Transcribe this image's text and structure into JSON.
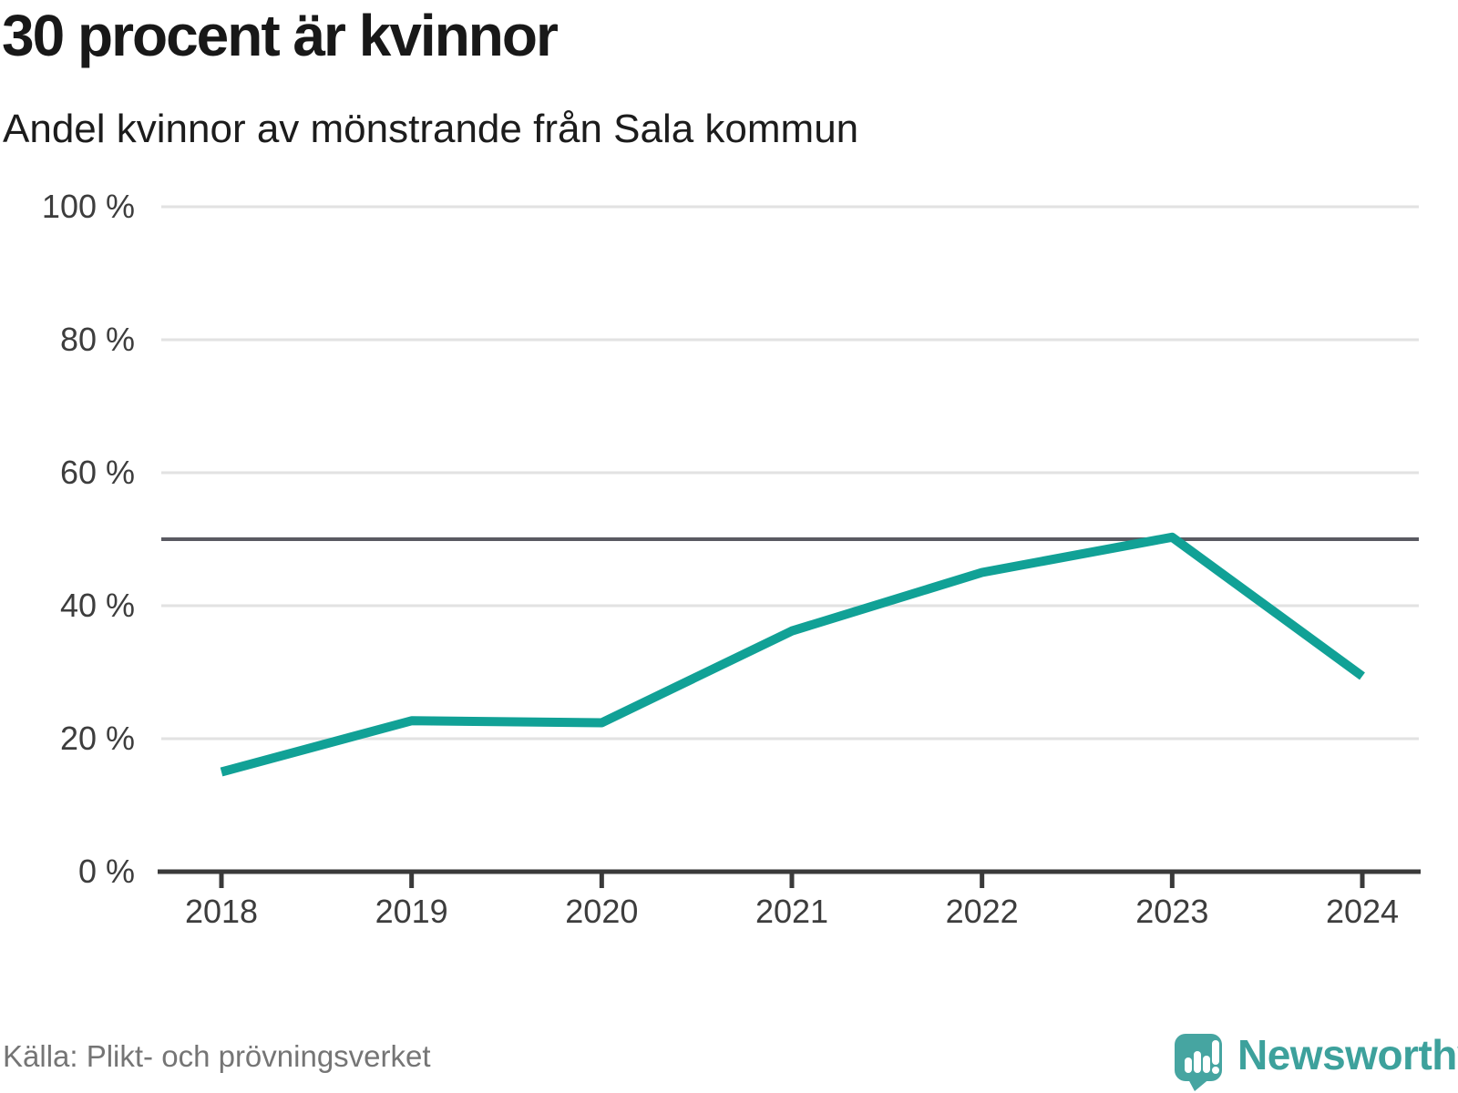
{
  "header": {
    "title": "30 procent är kvinnor",
    "subtitle": "Andel kvinnor av mönstrande från Sala kommun"
  },
  "chart_data": {
    "type": "line",
    "title": "30 procent är kvinnor",
    "subtitle": "Andel kvinnor av mönstrande från Sala kommun",
    "x": [
      2018,
      2019,
      2020,
      2021,
      2022,
      2023,
      2024
    ],
    "xtick_labels": [
      "2018",
      "2019",
      "2020",
      "2021",
      "2022",
      "2023",
      "2024"
    ],
    "series": [
      {
        "name": "Andel kvinnor av mönstrande",
        "values": [
          15,
          22.7,
          22.4,
          36.2,
          45,
          50.3,
          29.4
        ]
      }
    ],
    "xlabel": "",
    "ylabel": "",
    "ylim": [
      0,
      100
    ],
    "yticks": [
      0,
      20,
      40,
      60,
      80,
      100
    ],
    "ytick_suffix": " %",
    "reference_line_y": 50,
    "grid": "horizontal",
    "legend": "none"
  },
  "footer": {
    "source": "Källa: Plikt- och prövningsverket",
    "logo_text": "Newsworthy"
  },
  "colors": {
    "line": "#11a196",
    "reference_line": "#5a5a62",
    "gridline": "#e2e2e2",
    "axis": "#3a3a3a",
    "tick_label": "#3d3d3d",
    "title": "#181818",
    "source_text": "#757575",
    "logo": "#46a5a1",
    "logo_text": "#3da19c",
    "background": "#ffffff"
  }
}
